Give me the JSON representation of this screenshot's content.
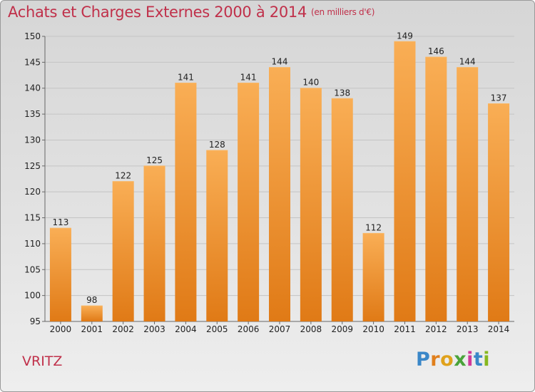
{
  "title": "Achats et Charges Externes 2000 à 2014",
  "unit": "(en milliers d'€)",
  "commune": "VRITZ",
  "logo": {
    "letters": [
      "P",
      "r",
      "o",
      "x",
      "i",
      "t",
      "i"
    ]
  },
  "colors": {
    "bar_light": "#f7a94e",
    "bar_dark": "#e07b17",
    "title": "#c0304a"
  },
  "chart_data": {
    "type": "bar",
    "title": "Achats et Charges Externes 2000 à 2014",
    "xlabel": "",
    "ylabel": "",
    "categories": [
      "2000",
      "2001",
      "2002",
      "2003",
      "2004",
      "2005",
      "2006",
      "2007",
      "2008",
      "2009",
      "2010",
      "2011",
      "2012",
      "2013",
      "2014"
    ],
    "values": [
      113,
      98,
      122,
      125,
      141,
      128,
      141,
      144,
      140,
      138,
      112,
      149,
      146,
      144,
      137
    ],
    "ylim": [
      95,
      150
    ],
    "yticks": [
      95,
      100,
      105,
      110,
      115,
      120,
      125,
      130,
      135,
      140,
      145,
      150
    ],
    "grid": true,
    "legend": "none"
  }
}
